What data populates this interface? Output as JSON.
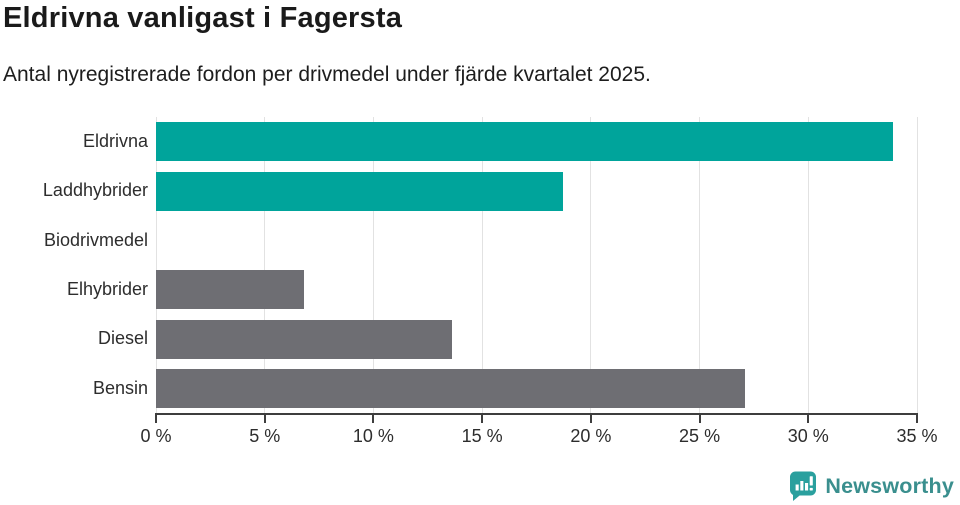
{
  "header": {
    "title": "Eldrivna vanligast i Fagersta",
    "subtitle": "Antal nyregistrerade fordon per drivmedel under fjärde kvartalet 2025."
  },
  "chart_data": {
    "type": "bar",
    "orientation": "horizontal",
    "title": "Eldrivna vanligast i Fagersta",
    "subtitle": "Antal nyregistrerade fordon per drivmedel under fjärde kvartalet 2025.",
    "categories": [
      "Eldrivna",
      "Laddhybrider",
      "Biodrivmedel",
      "Elhybrider",
      "Diesel",
      "Bensin"
    ],
    "values": [
      33.9,
      18.7,
      0,
      6.8,
      13.6,
      27.1
    ],
    "unit": "%",
    "bar_colors": [
      "#00a49b",
      "#00a49b",
      "#00a49b",
      "#6e6e73",
      "#6e6e73",
      "#6e6e73"
    ],
    "xlim": [
      0,
      35
    ],
    "x_ticks": [
      0,
      5,
      10,
      15,
      20,
      25,
      30,
      35
    ],
    "x_tick_labels": [
      "0 %",
      "5 %",
      "10 %",
      "15 %",
      "20 %",
      "25 %",
      "30 %",
      "35 %"
    ],
    "xlabel": "",
    "ylabel": "",
    "grid": "vertical",
    "legend": "none"
  },
  "colors": {
    "highlight": "#00a49b",
    "neutral": "#6e6e73",
    "gridline": "#e2e2e2",
    "axis": "#3e3e3e"
  },
  "branding": {
    "logo_text": "Newsworthy",
    "logo_icon": "newsworthy-chart-bubble-icon",
    "icon_color": "#2aa09e",
    "text_color": "#3a8f8e"
  }
}
